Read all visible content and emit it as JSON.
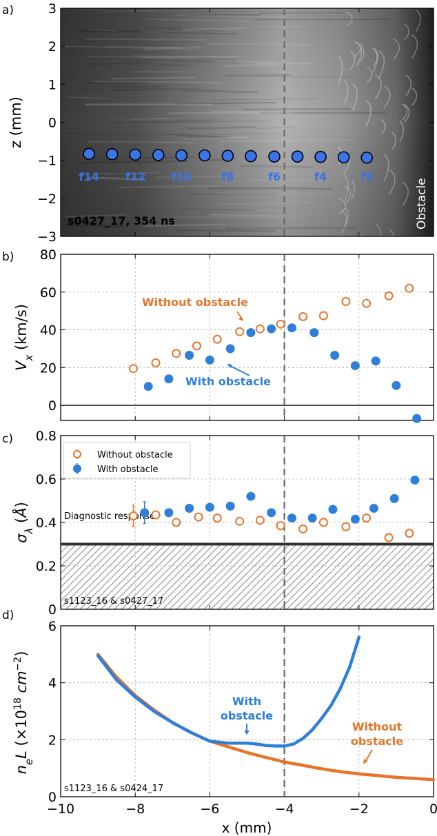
{
  "x_axis": {
    "label": "x (mm)",
    "lim": [
      -10,
      0
    ],
    "ticks": [
      -10,
      -8,
      -6,
      -4,
      -2,
      0
    ],
    "tick_labels": [
      "−10",
      "−8",
      "−6",
      "−4",
      "−2",
      "0"
    ]
  },
  "colors": {
    "orange": "#E8742A",
    "blue": "#2D7FD9",
    "blue_marker": "#3B73E8",
    "dark": "#333333"
  },
  "chart_data": [
    {
      "panel": "a)",
      "type": "scatter",
      "ylabel": "z (mm)",
      "ylim": [
        -3,
        3
      ],
      "yticks": [
        3,
        2,
        1,
        0,
        -1,
        -2,
        -3
      ],
      "ytick_labels": [
        "3",
        "2",
        "1",
        "0",
        "−1",
        "−2",
        "−3"
      ],
      "dashed_line_x": -4,
      "annotation": "s0427_17, 354 ns",
      "obstacle_label": "Obstacle",
      "points": {
        "x": [
          -9.24,
          -8.62,
          -8.0,
          -7.38,
          -6.76,
          -6.14,
          -5.52,
          -4.9,
          -4.27,
          -3.65,
          -3.03,
          -2.41,
          -1.79
        ],
        "z": [
          -0.83,
          -0.84,
          -0.85,
          -0.86,
          -0.87,
          -0.87,
          -0.88,
          -0.89,
          -0.9,
          -0.9,
          -0.91,
          -0.92,
          -0.93
        ]
      },
      "frame_labels": [
        {
          "label": "f14",
          "x": -9.24
        },
        {
          "label": "f12",
          "x": -7.99
        },
        {
          "label": "f10",
          "x": -6.76
        },
        {
          "label": "f8",
          "x": -5.52
        },
        {
          "label": "f6",
          "x": -4.27
        },
        {
          "label": "f4",
          "x": -3.03
        },
        {
          "label": "f2",
          "x": -1.78
        }
      ]
    },
    {
      "panel": "b)",
      "type": "scatter",
      "ylabel": "V_x (km/s)",
      "ylim": [
        -8,
        80
      ],
      "yticks": [
        0,
        20,
        40,
        60,
        80
      ],
      "ytick_labels": [
        "0",
        "20",
        "40",
        "60",
        "80"
      ],
      "dashed_line_x": -4,
      "series": [
        {
          "name": "Without obstacle",
          "style": "open",
          "color": "#E8742A",
          "x": [
            -8.05,
            -7.45,
            -6.9,
            -6.35,
            -5.8,
            -5.2,
            -4.65,
            -4.1,
            -3.5,
            -2.95,
            -2.35,
            -1.8,
            -1.2,
            -0.65
          ],
          "y": [
            19.5,
            22.5,
            27.5,
            31.5,
            35.0,
            39.0,
            40.5,
            43.0,
            47.0,
            47.5,
            55.0,
            54.0,
            58.0,
            62.0
          ]
        },
        {
          "name": "With obstacle",
          "style": "filled",
          "color": "#2D7FD9",
          "x": [
            -7.65,
            -7.1,
            -6.55,
            -6.0,
            -5.45,
            -4.9,
            -4.35,
            -3.8,
            -3.2,
            -2.65,
            -2.1,
            -1.55,
            -1.0,
            -0.45
          ],
          "y": [
            10.0,
            14.0,
            26.5,
            24.0,
            30.0,
            38.5,
            40.5,
            41.0,
            38.5,
            26.5,
            21.0,
            23.5,
            10.5,
            -7.0
          ]
        }
      ],
      "annotations": [
        {
          "text": "Without obstacle",
          "color": "#E8742A"
        },
        {
          "text": "With obstacle",
          "color": "#2D7FD9"
        }
      ]
    },
    {
      "panel": "c)",
      "type": "scatter",
      "ylabel": "σ_λ (Å)",
      "ylim": [
        0,
        0.8
      ],
      "yticks": [
        0,
        0.2,
        0.4,
        0.6,
        0.8
      ],
      "ytick_labels": [
        "0",
        "0.2",
        "0.4",
        "0.6",
        "0.8"
      ],
      "dashed_line_x": -4,
      "diagnostic_response": 0.3,
      "diagnostic_label": "Diagnostic response",
      "annotation": "s1123_16 & s0427_17",
      "legend": {
        "placement": "top-left",
        "entries": [
          "Without obstacle",
          "With obstacle"
        ]
      },
      "series": [
        {
          "name": "Without obstacle",
          "style": "open",
          "color": "#E8742A",
          "x": [
            -8.05,
            -7.45,
            -6.9,
            -6.3,
            -5.8,
            -5.2,
            -4.65,
            -4.1,
            -3.5,
            -2.95,
            -2.35,
            -1.8,
            -1.2,
            -0.65
          ],
          "y": [
            0.43,
            0.435,
            0.4,
            0.425,
            0.42,
            0.405,
            0.41,
            0.385,
            0.37,
            0.4,
            0.38,
            0.42,
            0.33,
            0.35
          ],
          "err": [
            0.05,
            0,
            0,
            0,
            0,
            0,
            0,
            0,
            0,
            0,
            0,
            0,
            0,
            0
          ]
        },
        {
          "name": "With obstacle",
          "style": "filled",
          "color": "#2D7FD9",
          "x": [
            -7.75,
            -7.1,
            -6.55,
            -6.0,
            -5.45,
            -4.9,
            -4.35,
            -3.8,
            -3.25,
            -2.7,
            -2.1,
            -1.6,
            -1.05,
            -0.5
          ],
          "y": [
            0.445,
            0.445,
            0.465,
            0.47,
            0.475,
            0.52,
            0.445,
            0.42,
            0.42,
            0.46,
            0.415,
            0.465,
            0.51,
            0.595
          ],
          "err": [
            0.05,
            0,
            0,
            0,
            0,
            0,
            0,
            0,
            0,
            0,
            0,
            0,
            0,
            0
          ]
        }
      ]
    },
    {
      "panel": "d)",
      "type": "line",
      "ylabel": "n_e L (×10^18 cm^-2)",
      "ylim": [
        0,
        6
      ],
      "yticks": [
        0,
        2,
        4,
        6
      ],
      "ytick_labels": [
        "0",
        "2",
        "4",
        "6"
      ],
      "dashed_line_x": -4,
      "annotation": "s1123_16 & s0424_17",
      "series": [
        {
          "name": "Without obstacle",
          "color": "#E8742A",
          "x": [
            -9.0,
            -8.5,
            -8.0,
            -7.5,
            -7.0,
            -6.5,
            -6.0,
            -5.5,
            -5.0,
            -4.5,
            -4.0,
            -3.5,
            -3.0,
            -2.5,
            -2.0,
            -1.5,
            -1.0,
            -0.5,
            0.0
          ],
          "y": [
            5.0,
            4.2,
            3.55,
            3.05,
            2.6,
            2.25,
            1.95,
            1.75,
            1.55,
            1.38,
            1.22,
            1.1,
            0.98,
            0.88,
            0.8,
            0.74,
            0.68,
            0.64,
            0.6
          ]
        },
        {
          "name": "With obstacle",
          "color": "#2D7FD9",
          "x": [
            -9.0,
            -8.5,
            -8.0,
            -7.5,
            -7.0,
            -6.5,
            -6.0,
            -5.5,
            -5.0,
            -4.75,
            -4.5,
            -4.25,
            -4.0,
            -3.75,
            -3.5,
            -3.25,
            -3.0,
            -2.75,
            -2.5,
            -2.25,
            -2.0
          ],
          "y": [
            4.95,
            4.1,
            3.5,
            3.0,
            2.6,
            2.25,
            1.95,
            1.88,
            1.88,
            1.85,
            1.8,
            1.78,
            1.78,
            1.85,
            2.05,
            2.35,
            2.75,
            3.2,
            3.8,
            4.55,
            5.6
          ]
        }
      ],
      "annotations": [
        {
          "lines": [
            "With",
            "obstacle"
          ],
          "color": "#2D7FD9"
        },
        {
          "lines": [
            "Without",
            "obstacle"
          ],
          "color": "#E8742A"
        }
      ]
    }
  ]
}
